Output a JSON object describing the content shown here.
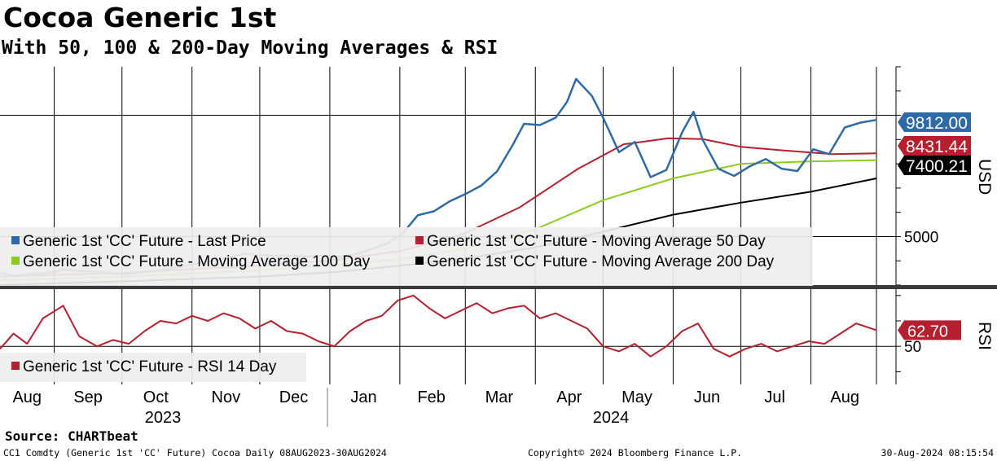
{
  "header": {
    "title": "Cocoa Generic 1st",
    "subtitle": "With 50, 100 & 200-Day Moving Averages & RSI"
  },
  "chart_data": [
    {
      "type": "line",
      "panel": "price",
      "unit_label": "USD",
      "ylim": [
        3000,
        12000
      ],
      "yticks": [
        5000
      ],
      "x_months": [
        "Aug",
        "Sep",
        "Oct",
        "Nov",
        "Dec",
        "Jan",
        "Feb",
        "Mar",
        "Apr",
        "May",
        "Jun",
        "Jul",
        "Aug"
      ],
      "x_years": [
        "2023",
        "2024"
      ],
      "series": [
        {
          "name": "Generic 1st 'CC' Future - Last Price",
          "color": "#2f6aa8",
          "points": [
            [
              "2023-08-08",
              3500
            ],
            [
              "2023-08-15",
              3380
            ],
            [
              "2023-08-22",
              3460
            ],
            [
              "2023-08-31",
              3520
            ],
            [
              "2023-09-05",
              3640
            ],
            [
              "2023-09-12",
              3580
            ],
            [
              "2023-09-20",
              3560
            ],
            [
              "2023-09-29",
              3460
            ],
            [
              "2023-10-06",
              3470
            ],
            [
              "2023-10-13",
              3560
            ],
            [
              "2023-10-20",
              3640
            ],
            [
              "2023-10-27",
              3760
            ],
            [
              "2023-11-03",
              3880
            ],
            [
              "2023-11-10",
              4000
            ],
            [
              "2023-11-17",
              4140
            ],
            [
              "2023-11-24",
              4300
            ],
            [
              "2023-12-01",
              4240
            ],
            [
              "2023-12-08",
              4210
            ],
            [
              "2023-12-15",
              4200
            ],
            [
              "2023-12-22",
              4180
            ],
            [
              "2023-12-29",
              4210
            ],
            [
              "2024-01-05",
              4160
            ],
            [
              "2024-01-12",
              4260
            ],
            [
              "2024-01-19",
              4460
            ],
            [
              "2024-01-26",
              4700
            ],
            [
              "2024-02-02",
              5100
            ],
            [
              "2024-02-09",
              5880
            ],
            [
              "2024-02-16",
              6040
            ],
            [
              "2024-02-23",
              6450
            ],
            [
              "2024-03-01",
              6750
            ],
            [
              "2024-03-08",
              7100
            ],
            [
              "2024-03-15",
              7680
            ],
            [
              "2024-03-22",
              8780
            ],
            [
              "2024-03-27",
              9650
            ],
            [
              "2024-04-03",
              9600
            ],
            [
              "2024-04-10",
              9900
            ],
            [
              "2024-04-15",
              10550
            ],
            [
              "2024-04-19",
              11500
            ],
            [
              "2024-04-26",
              10800
            ],
            [
              "2024-05-01",
              9900
            ],
            [
              "2024-05-08",
              8480
            ],
            [
              "2024-05-15",
              8900
            ],
            [
              "2024-05-22",
              7450
            ],
            [
              "2024-05-29",
              7750
            ],
            [
              "2024-06-05",
              9300
            ],
            [
              "2024-06-10",
              10150
            ],
            [
              "2024-06-14",
              9000
            ],
            [
              "2024-06-21",
              7800
            ],
            [
              "2024-06-28",
              7500
            ],
            [
              "2024-07-05",
              7900
            ],
            [
              "2024-07-12",
              8200
            ],
            [
              "2024-07-19",
              7800
            ],
            [
              "2024-07-26",
              7700
            ],
            [
              "2024-08-02",
              8600
            ],
            [
              "2024-08-09",
              8400
            ],
            [
              "2024-08-16",
              9500
            ],
            [
              "2024-08-23",
              9700
            ],
            [
              "2024-08-30",
              9812
            ]
          ]
        },
        {
          "name": "Generic 1st 'CC' Future - Moving Average 50 Day",
          "color": "#b51f2e",
          "points": [
            [
              "2023-08-08",
              3350
            ],
            [
              "2023-10-01",
              3500
            ],
            [
              "2023-12-01",
              3800
            ],
            [
              "2024-01-05",
              4050
            ],
            [
              "2024-02-01",
              4400
            ],
            [
              "2024-02-29",
              5100
            ],
            [
              "2024-03-25",
              6200
            ],
            [
              "2024-04-20",
              7800
            ],
            [
              "2024-05-10",
              8800
            ],
            [
              "2024-05-30",
              9050
            ],
            [
              "2024-06-14",
              9020
            ],
            [
              "2024-07-01",
              8700
            ],
            [
              "2024-07-20",
              8550
            ],
            [
              "2024-08-10",
              8400
            ],
            [
              "2024-08-30",
              8431.44
            ]
          ]
        },
        {
          "name": "Generic 1st 'CC' Future - Moving Average 100 Day",
          "color": "#8ccc1e",
          "points": [
            [
              "2023-08-08",
              3200
            ],
            [
              "2023-10-01",
              3350
            ],
            [
              "2023-12-01",
              3600
            ],
            [
              "2024-01-05",
              3850
            ],
            [
              "2024-02-01",
              4050
            ],
            [
              "2024-03-01",
              4500
            ],
            [
              "2024-04-01",
              5300
            ],
            [
              "2024-05-01",
              6500
            ],
            [
              "2024-06-01",
              7400
            ],
            [
              "2024-07-01",
              8000
            ],
            [
              "2024-08-01",
              8100
            ],
            [
              "2024-08-30",
              8150
            ]
          ]
        },
        {
          "name": "Generic 1st 'CC' Future - Moving Average 200 Day",
          "color": "#000000",
          "points": [
            [
              "2023-08-08",
              3000
            ],
            [
              "2023-10-01",
              3150
            ],
            [
              "2023-12-01",
              3350
            ],
            [
              "2024-01-05",
              3550
            ],
            [
              "2024-02-01",
              3800
            ],
            [
              "2024-03-01",
              4100
            ],
            [
              "2024-04-01",
              4550
            ],
            [
              "2024-05-01",
              5200
            ],
            [
              "2024-06-01",
              5900
            ],
            [
              "2024-07-01",
              6400
            ],
            [
              "2024-08-01",
              6850
            ],
            [
              "2024-08-30",
              7400.21
            ]
          ]
        }
      ],
      "value_labels": [
        {
          "text": "9812.00",
          "value": 9812.0,
          "bg": "#2f6aa8",
          "fg": "#ffffff"
        },
        {
          "text": "8431.44",
          "value": 8431.44,
          "bg": "#b51f2e",
          "fg": "#ffffff"
        },
        {
          "text": "7400.21",
          "value": 7400.21,
          "bg": "#000000",
          "fg": "#ffffff"
        }
      ],
      "tick_labels": [
        "5000"
      ]
    },
    {
      "type": "line",
      "panel": "rsi",
      "unit_label": "RSI",
      "ylim": [
        20,
        95
      ],
      "yticks": [
        50
      ],
      "series": [
        {
          "name": "Generic 1st 'CC' Future - RSI 14 Day",
          "color": "#b51f2e",
          "points": [
            [
              "2023-08-08",
              48
            ],
            [
              "2023-08-14",
              60
            ],
            [
              "2023-08-20",
              52
            ],
            [
              "2023-08-27",
              72
            ],
            [
              "2023-09-05",
              82
            ],
            [
              "2023-09-12",
              58
            ],
            [
              "2023-09-20",
              50
            ],
            [
              "2023-09-27",
              55
            ],
            [
              "2023-10-04",
              52
            ],
            [
              "2023-10-11",
              62
            ],
            [
              "2023-10-18",
              70
            ],
            [
              "2023-10-25",
              68
            ],
            [
              "2023-11-01",
              74
            ],
            [
              "2023-11-08",
              70
            ],
            [
              "2023-11-15",
              76
            ],
            [
              "2023-11-22",
              72
            ],
            [
              "2023-11-29",
              64
            ],
            [
              "2023-12-06",
              70
            ],
            [
              "2023-12-13",
              62
            ],
            [
              "2023-12-20",
              60
            ],
            [
              "2023-12-27",
              54
            ],
            [
              "2024-01-03",
              50
            ],
            [
              "2024-01-10",
              62
            ],
            [
              "2024-01-17",
              70
            ],
            [
              "2024-01-24",
              74
            ],
            [
              "2024-01-31",
              86
            ],
            [
              "2024-02-07",
              90
            ],
            [
              "2024-02-14",
              80
            ],
            [
              "2024-02-21",
              72
            ],
            [
              "2024-02-28",
              78
            ],
            [
              "2024-03-06",
              84
            ],
            [
              "2024-03-13",
              76
            ],
            [
              "2024-03-20",
              80
            ],
            [
              "2024-03-27",
              82
            ],
            [
              "2024-04-03",
              72
            ],
            [
              "2024-04-10",
              76
            ],
            [
              "2024-04-17",
              70
            ],
            [
              "2024-04-24",
              64
            ],
            [
              "2024-05-01",
              50
            ],
            [
              "2024-05-08",
              46
            ],
            [
              "2024-05-15",
              52
            ],
            [
              "2024-05-22",
              42
            ],
            [
              "2024-05-29",
              50
            ],
            [
              "2024-06-05",
              62
            ],
            [
              "2024-06-12",
              68
            ],
            [
              "2024-06-19",
              48
            ],
            [
              "2024-06-26",
              42
            ],
            [
              "2024-07-03",
              48
            ],
            [
              "2024-07-10",
              52
            ],
            [
              "2024-07-17",
              46
            ],
            [
              "2024-07-24",
              50
            ],
            [
              "2024-07-31",
              54
            ],
            [
              "2024-08-07",
              52
            ],
            [
              "2024-08-14",
              60
            ],
            [
              "2024-08-21",
              68
            ],
            [
              "2024-08-30",
              62.7
            ]
          ]
        }
      ],
      "value_labels": [
        {
          "text": "62.70",
          "value": 62.7,
          "bg": "#b51f2e",
          "fg": "#ffffff"
        }
      ],
      "tick_labels": [
        "50"
      ]
    }
  ],
  "footer": {
    "source": "Source: CHARTbeat",
    "left": "CC1 Comdty (Generic 1st 'CC' Future) Cocoa  Daily 08AUG2023-30AUG2024",
    "center": "Copyright© 2024 Bloomberg Finance L.P.",
    "right": "30-Aug-2024 08:15:54"
  }
}
